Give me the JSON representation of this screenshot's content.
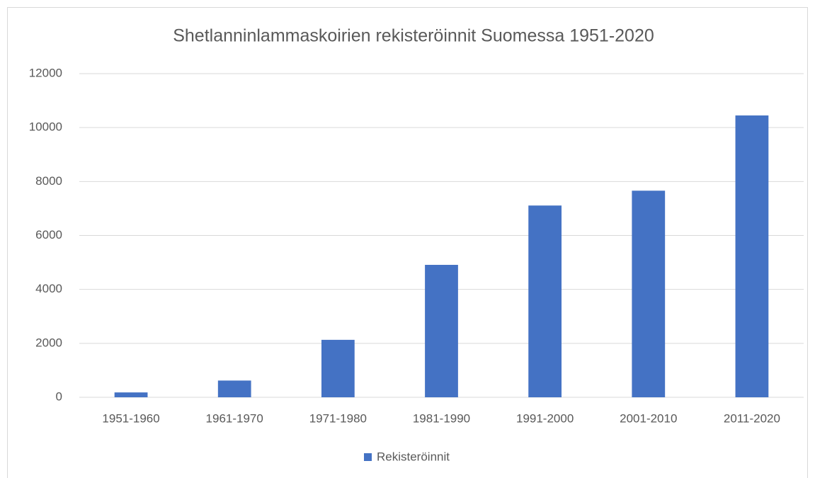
{
  "chart_data": {
    "type": "bar",
    "title": "Shetlanninlammaskoirien rekisteröinnit Suomessa 1951-2020",
    "categories": [
      "1951-1960",
      "1961-1970",
      "1971-1980",
      "1981-1990",
      "1991-2000",
      "2001-2010",
      "2011-2020"
    ],
    "series": [
      {
        "name": "Rekisteröinnit",
        "color": "#4472c4",
        "values": [
          180,
          620,
          2130,
          4910,
          7110,
          7660,
          10450
        ]
      }
    ],
    "ylim": [
      0,
      12000
    ],
    "yticks": [
      0,
      2000,
      4000,
      6000,
      8000,
      10000,
      12000
    ],
    "grid": true,
    "legend": "bottom"
  }
}
